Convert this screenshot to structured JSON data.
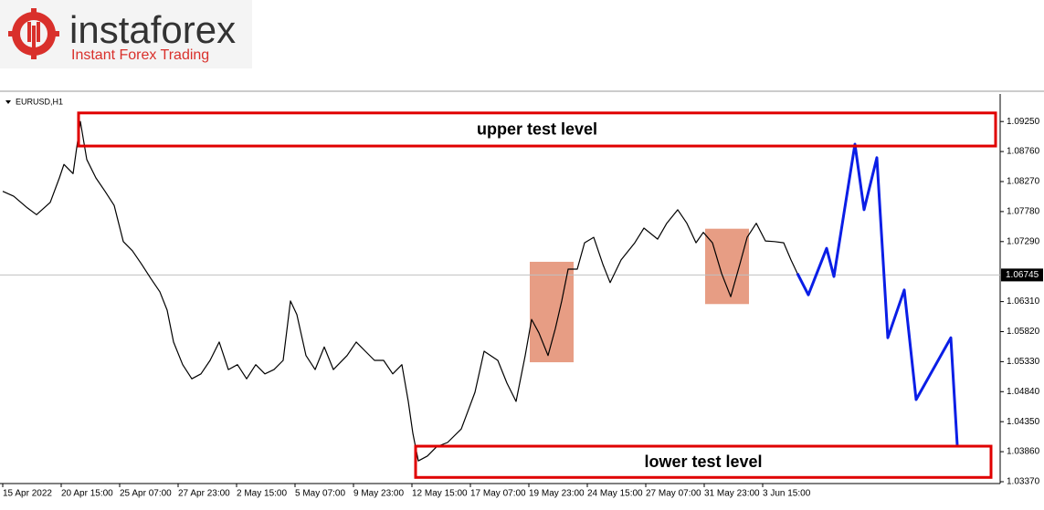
{
  "logo": {
    "name": "instaforex",
    "tagline": "Instant Forex Trading"
  },
  "chart_data": {
    "type": "line",
    "title": "EURUSD,H1",
    "xlim": [
      0,
      546
    ],
    "ylim": [
      1.0334,
      1.0967
    ],
    "xticks": [
      {
        "value": 0,
        "label": "15 Apr 2022"
      },
      {
        "value": 32,
        "label": "20 Apr 15:00"
      },
      {
        "value": 64,
        "label": "25 Apr 07:00"
      },
      {
        "value": 96,
        "label": "27 Apr 23:00"
      },
      {
        "value": 128,
        "label": "2 May 15:00"
      },
      {
        "value": 160,
        "label": "5 May 07:00"
      },
      {
        "value": 192,
        "label": "9 May 23:00"
      },
      {
        "value": 224,
        "label": "12 May 15:00"
      },
      {
        "value": 256,
        "label": "17 May 07:00"
      },
      {
        "value": 288,
        "label": "19 May 23:00"
      },
      {
        "value": 320,
        "label": "24 May 15:00"
      },
      {
        "value": 352,
        "label": "27 May 07:00"
      },
      {
        "value": 384,
        "label": "31 May 23:00"
      },
      {
        "value": 416,
        "label": "3 Jun 15:00"
      }
    ],
    "yticks": [
      {
        "value": 1.0925,
        "label": "1.09250"
      },
      {
        "value": 1.0876,
        "label": "1.08760"
      },
      {
        "value": 1.0827,
        "label": "1.08270"
      },
      {
        "value": 1.0778,
        "label": "1.07780"
      },
      {
        "value": 1.0729,
        "label": "1.07290"
      },
      {
        "value": 1.0631,
        "label": "1.06310"
      },
      {
        "value": 1.0582,
        "label": "1.05820"
      },
      {
        "value": 1.0533,
        "label": "1.05330"
      },
      {
        "value": 1.0484,
        "label": "1.04840"
      },
      {
        "value": 1.0435,
        "label": "1.04350"
      },
      {
        "value": 1.0386,
        "label": "1.03860"
      },
      {
        "value": 1.0337,
        "label": "1.03370"
      }
    ],
    "current_price": {
      "value": 1.06745,
      "label": "1.06745",
      "color": "#c0c0c0"
    },
    "series": [
      {
        "color": "#000000",
        "x": [
          0,
          6,
          13.5,
          18.5,
          26,
          31,
          33.5,
          38.5,
          42.5,
          46,
          51,
          56,
          61,
          66,
          71,
          76,
          81,
          86,
          90,
          93.5,
          98.5,
          103.5,
          108.5,
          113.5,
          118.5,
          123.5,
          128.5,
          133.5,
          138.5,
          143.5,
          148.5,
          153.5,
          157.5,
          161,
          166,
          171,
          176,
          181,
          188.5,
          193.5,
          198.5,
          203.5,
          208.5,
          213.5,
          218.5,
          222,
          224.5,
          227.5,
          232.5,
          237.5,
          243.5,
          251,
          258.5,
          263.5,
          271,
          276,
          281,
          286,
          289.5,
          293.5,
          298.5,
          302.5,
          306,
          309.5,
          314.5,
          318.5,
          323.5,
          328.5,
          332.5,
          338.5,
          346,
          351,
          358.5,
          363.5,
          369.5,
          374.5,
          379.5,
          383.5,
          388.5,
          393.5,
          398.5,
          403.5,
          407.5,
          412.5,
          417.5,
          422.5,
          427.5,
          431.5,
          435
        ],
        "values": [
          1.0811,
          1.0803,
          1.0784,
          1.0773,
          1.0793,
          1.0833,
          1.0855,
          1.084,
          1.0925,
          1.0863,
          1.0833,
          1.0811,
          1.0788,
          1.0729,
          1.0714,
          1.0692,
          1.0669,
          1.0647,
          1.0617,
          1.0565,
          1.0528,
          1.0505,
          1.0513,
          1.0535,
          1.0565,
          1.052,
          1.0528,
          1.0505,
          1.0528,
          1.0513,
          1.052,
          1.0535,
          1.0632,
          1.061,
          1.0543,
          1.052,
          1.0557,
          1.052,
          1.0543,
          1.0565,
          1.055,
          1.0535,
          1.0535,
          1.0513,
          1.0528,
          1.0468,
          1.0416,
          1.0371,
          1.0379,
          1.0394,
          1.0401,
          1.0423,
          1.0483,
          1.055,
          1.0535,
          1.0498,
          1.0468,
          1.0543,
          1.0602,
          1.058,
          1.0543,
          1.0587,
          1.0632,
          1.0684,
          1.0684,
          1.0727,
          1.0736,
          1.0692,
          1.0662,
          1.0699,
          1.0727,
          1.0751,
          1.0733,
          1.0759,
          1.0781,
          1.0759,
          1.0727,
          1.0744,
          1.0727,
          1.0677,
          1.0639,
          1.0692,
          1.0736,
          1.0759,
          1.073,
          1.0729,
          1.0727,
          1.0699,
          1.0677
        ]
      },
      {
        "color": "#0a1ee6",
        "x": [
          435,
          441,
          451,
          455,
          466.5,
          471.5,
          478.5,
          484.5,
          493.5,
          500,
          519,
          522.5
        ],
        "values": [
          1.0677,
          1.0642,
          1.0718,
          1.0672,
          1.0888,
          1.0781,
          1.0866,
          1.0572,
          1.065,
          1.0471,
          1.0572,
          1.0397
        ]
      }
    ],
    "annotations": [
      {
        "text": "upper test level",
        "x": [
          41.5,
          543.5
        ],
        "y": [
          1.0885,
          1.0939
        ],
        "color": "#e00000"
      },
      {
        "text": "lower test level",
        "x": [
          226,
          541
        ],
        "y": [
          1.0344,
          1.0395
        ],
        "color": "#e00000"
      }
    ],
    "highlights": [
      {
        "x": [
          288.5,
          312.5
        ],
        "y": [
          1.0532,
          1.0696
        ],
        "color": "#e38c6e"
      },
      {
        "x": [
          384.5,
          408.5
        ],
        "y": [
          1.0627,
          1.075
        ],
        "color": "#e38c6e"
      }
    ]
  }
}
